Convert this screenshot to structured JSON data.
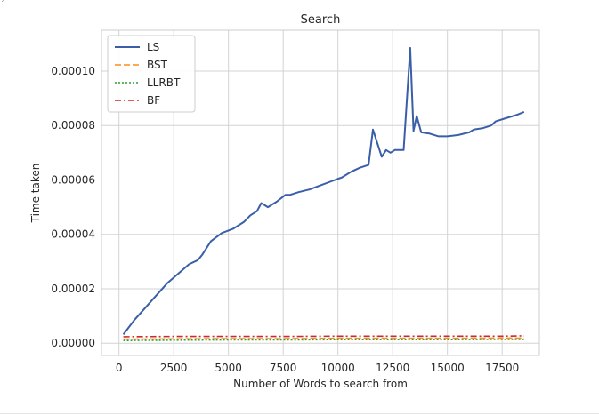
{
  "chart_data": {
    "type": "line",
    "title": "Search",
    "xlabel": "Number of Words to search from",
    "ylabel": "Time taken",
    "xlim": [
      -800,
      19200
    ],
    "ylim": [
      -4.5e-06,
      0.000115
    ],
    "x_ticks": [
      0,
      2500,
      5000,
      7500,
      10000,
      12500,
      15000,
      17500
    ],
    "y_ticks": [
      0.0,
      2e-05,
      4e-05,
      6e-05,
      8e-05,
      0.0001
    ],
    "x_tick_labels": [
      "0",
      "2500",
      "5000",
      "7500",
      "10000",
      "12500",
      "15000",
      "17500"
    ],
    "y_tick_labels": [
      "0.00000",
      "0.00002",
      "0.00004",
      "0.00006",
      "0.00008",
      "0.00010"
    ],
    "grid": true,
    "legend_position": "top-left",
    "series": [
      {
        "name": "LS",
        "color": "#3a5fa8",
        "dash": "solid",
        "x": [
          200,
          700,
          1200,
          1700,
          2200,
          2700,
          3200,
          3600,
          3800,
          4200,
          4700,
          5200,
          5700,
          6000,
          6300,
          6500,
          6800,
          7200,
          7600,
          7800,
          8200,
          8700,
          9200,
          9700,
          10200,
          10600,
          11000,
          11400,
          11600,
          12000,
          12200,
          12400,
          12600,
          13000,
          13300,
          13450,
          13600,
          13800,
          14200,
          14600,
          15000,
          15500,
          16000,
          16200,
          16600,
          17000,
          17200,
          17600,
          18000,
          18200,
          18500
        ],
        "y": [
          3.2e-06,
          8.5e-06,
          1.3e-05,
          1.75e-05,
          2.2e-05,
          2.55e-05,
          2.9e-05,
          3.05e-05,
          3.25e-05,
          3.75e-05,
          4.05e-05,
          4.2e-05,
          4.45e-05,
          4.7e-05,
          4.85e-05,
          5.15e-05,
          5e-05,
          5.2e-05,
          5.45e-05,
          5.45e-05,
          5.55e-05,
          5.65e-05,
          5.8e-05,
          5.95e-05,
          6.1e-05,
          6.3e-05,
          6.45e-05,
          6.55e-05,
          7.85e-05,
          6.85e-05,
          7.1e-05,
          7e-05,
          7.1e-05,
          7.1e-05,
          0.0001085,
          7.8e-05,
          8.35e-05,
          7.75e-05,
          7.7e-05,
          7.6e-05,
          7.6e-05,
          7.65e-05,
          7.75e-05,
          7.85e-05,
          7.9e-05,
          8e-05,
          8.15e-05,
          8.25e-05,
          8.35e-05,
          8.4e-05,
          8.5e-05
        ]
      },
      {
        "name": "BST",
        "color": "#ff8c1a",
        "dash": "dashed",
        "x": [
          200,
          2500,
          5000,
          7500,
          10000,
          12500,
          15000,
          17500,
          18500
        ],
        "y": [
          1.5e-06,
          1.6e-06,
          1.7e-06,
          1.7e-06,
          1.8e-06,
          1.8e-06,
          1.8e-06,
          1.9e-06,
          1.9e-06
        ]
      },
      {
        "name": "LLRBT",
        "color": "#2ca02c",
        "dash": "dotted",
        "x": [
          200,
          2500,
          5000,
          7500,
          10000,
          12500,
          15000,
          17500,
          18500
        ],
        "y": [
          1e-06,
          1.1e-06,
          1.2e-06,
          1.2e-06,
          1.3e-06,
          1.3e-06,
          1.3e-06,
          1.4e-06,
          1.4e-06
        ]
      },
      {
        "name": "BF",
        "color": "#d62728",
        "dash": "dashdot",
        "x": [
          200,
          2500,
          5000,
          7500,
          10000,
          12500,
          15000,
          17500,
          18500
        ],
        "y": [
          2.4e-06,
          2.5e-06,
          2.5e-06,
          2.5e-06,
          2.6e-06,
          2.6e-06,
          2.6e-06,
          2.6e-06,
          2.7e-06
        ]
      }
    ]
  },
  "colors": {
    "grid": "#d3d3d3",
    "axes_edge": "#cccccc",
    "text": "#262626",
    "background": "#ffffff"
  },
  "corner_mark": "´"
}
